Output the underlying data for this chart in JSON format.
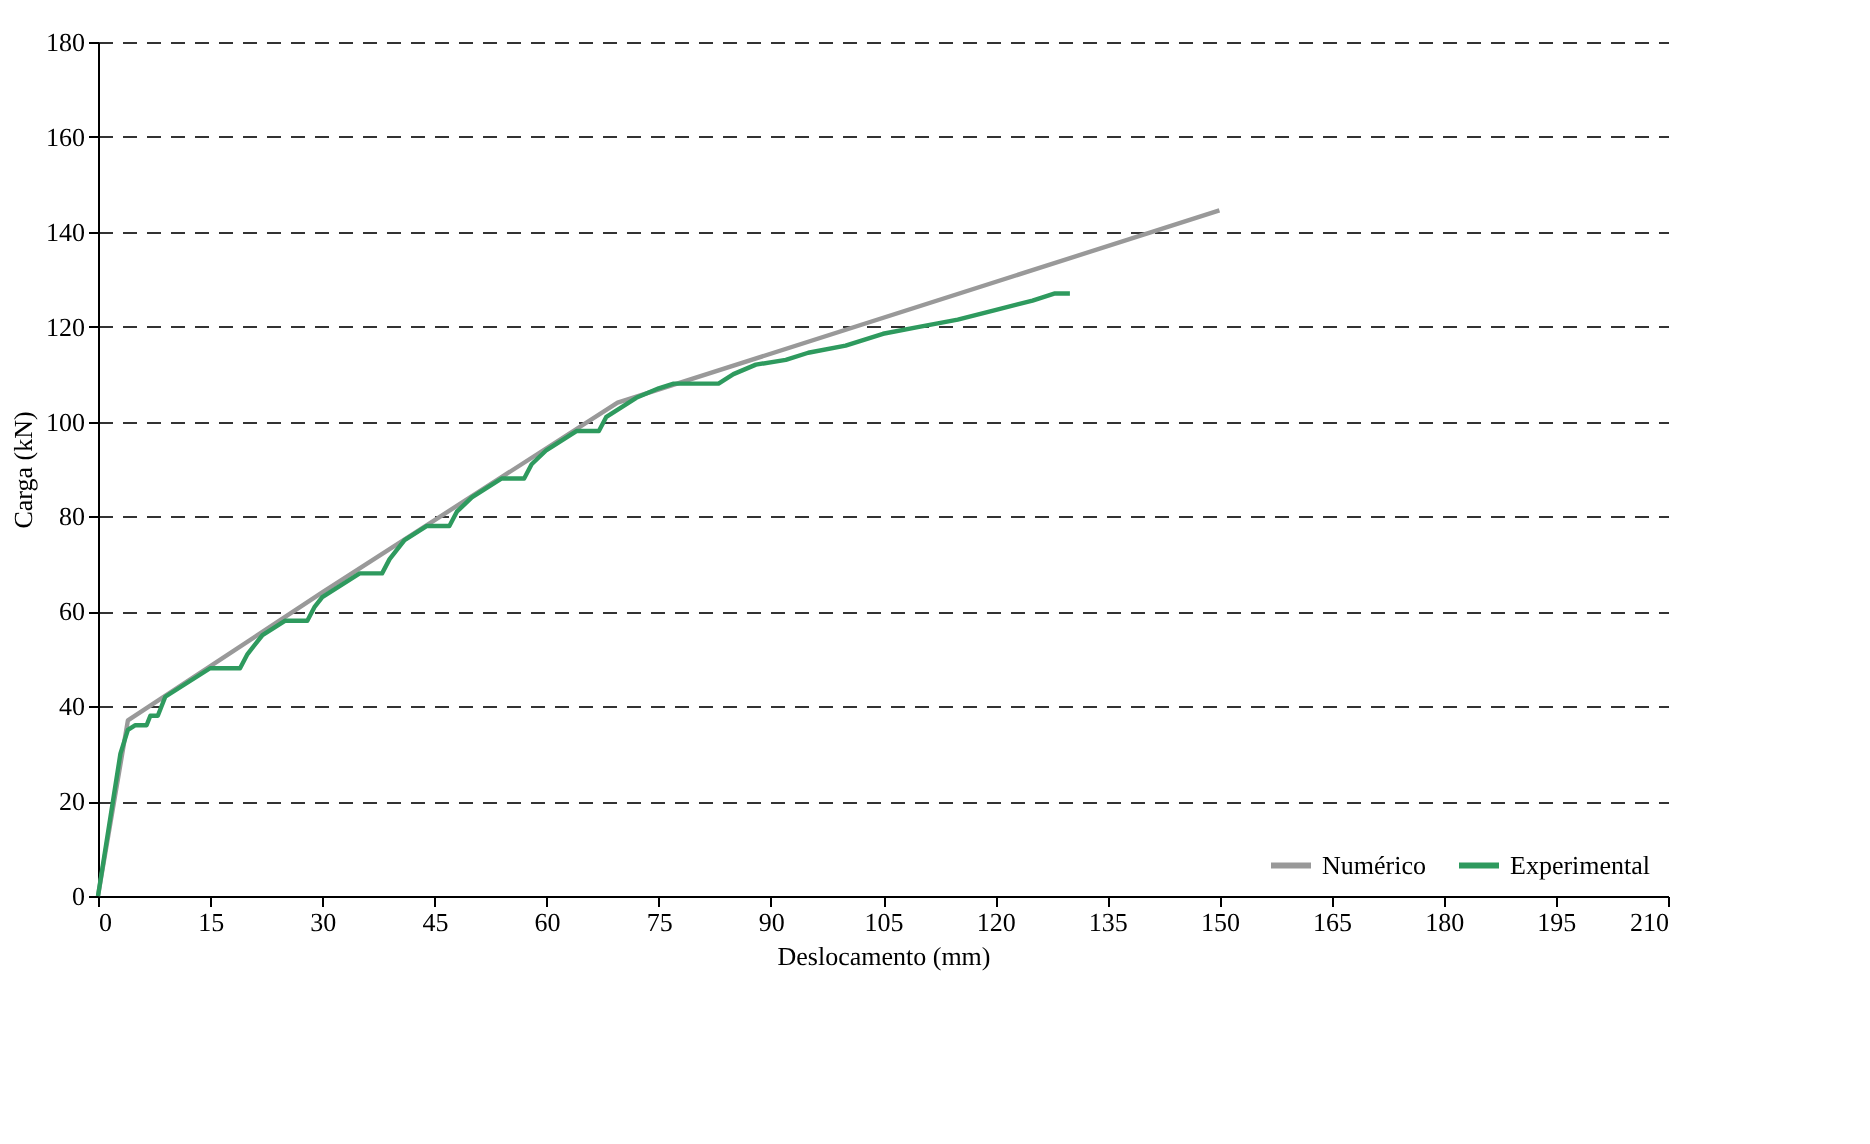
{
  "chart_data": {
    "type": "line",
    "xlabel": "Deslocamento (mm)",
    "ylabel": "Carga (kN)",
    "xlim": [
      0,
      210
    ],
    "xticks": [
      0,
      15,
      30,
      45,
      60,
      75,
      90,
      105,
      120,
      135,
      150,
      165,
      180,
      195,
      210
    ],
    "ylim": [
      0,
      180
    ],
    "yticks": [
      0,
      20,
      40,
      60,
      80,
      100,
      120,
      140,
      160,
      180
    ],
    "grid": "y",
    "legend": "bottom right",
    "line_style": "solid",
    "marker": "none",
    "series": [
      {
        "name": "Numérico",
        "color": "#999999",
        "x": [
          0,
          4,
          30,
          69.5,
          150
        ],
        "values": [
          0,
          37,
          64,
          104,
          144.5
        ]
      },
      {
        "name": "Experimental",
        "color": "#2e9a5e",
        "x": [
          0,
          2,
          3,
          4,
          5,
          6.5,
          7,
          8,
          9,
          11,
          13,
          15,
          19,
          20,
          22,
          24,
          25,
          28,
          29,
          30,
          33,
          35,
          38,
          39,
          41,
          43,
          44,
          47,
          48,
          50,
          52,
          54,
          57,
          58,
          60,
          62,
          64,
          67,
          68,
          70,
          72,
          75,
          77,
          83,
          85,
          88,
          92,
          95,
          100,
          105,
          110,
          115,
          120,
          125,
          128,
          130
        ],
        "values": [
          0,
          20,
          30,
          35,
          36,
          36,
          38,
          38,
          42,
          44,
          46,
          48,
          48,
          51,
          55,
          57,
          58,
          58,
          61,
          63,
          66,
          68,
          68,
          71,
          75,
          77,
          78,
          78,
          81,
          84,
          86,
          88,
          88,
          91,
          94,
          96,
          98,
          98,
          101,
          103,
          105,
          107,
          108,
          108,
          110,
          112,
          113,
          114.5,
          116,
          118.5,
          120,
          121.5,
          123.5,
          125.5,
          127,
          127
        ]
      }
    ]
  }
}
